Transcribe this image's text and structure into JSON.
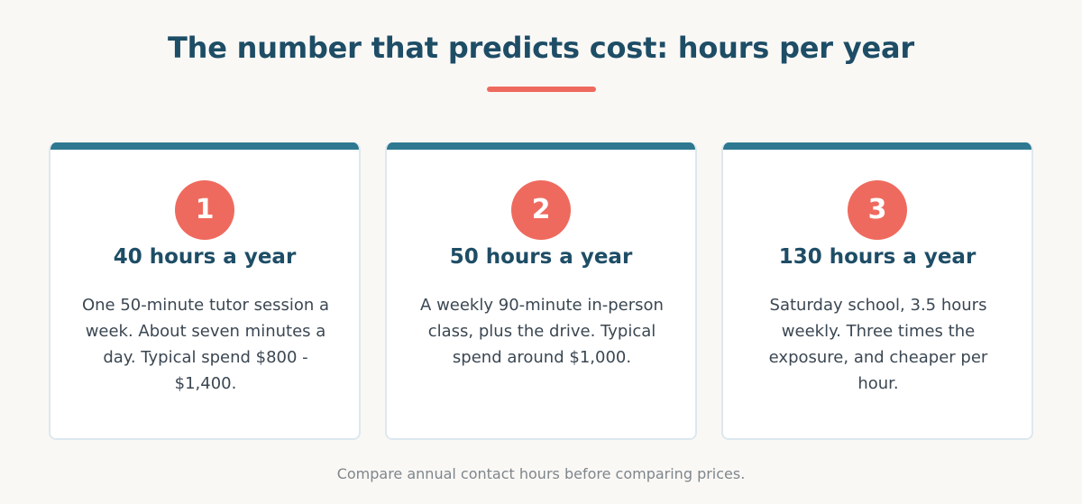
{
  "page": {
    "title": "The number that predicts cost: hours per year",
    "footer": "Compare annual contact hours before comparing prices."
  },
  "colors": {
    "heading": "#1e4d66",
    "accent": "#ef6a5e",
    "card_bar": "#2e7891",
    "background": "#faf8f5"
  },
  "cards": [
    {
      "number": "1",
      "heading": "40 hours a year",
      "text": "One 50-minute tutor session a week. About seven minutes a day. Typical spend $800 - $1,400."
    },
    {
      "number": "2",
      "heading": "50 hours a year",
      "text": "A weekly 90-minute in-person class, plus the drive. Typical spend around $1,000."
    },
    {
      "number": "3",
      "heading": "130 hours a year",
      "text": "Saturday school, 3.5 hours weekly. Three times the exposure, and cheaper per hour."
    }
  ]
}
